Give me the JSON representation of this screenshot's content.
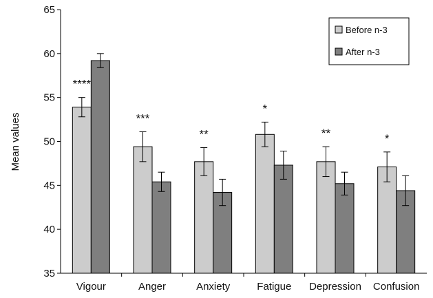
{
  "chart_data": {
    "type": "bar",
    "ylabel": "Mean values",
    "ylim": [
      35,
      65
    ],
    "yticks": [
      35,
      40,
      45,
      50,
      55,
      60,
      65
    ],
    "categories": [
      "Vigour",
      "Anger",
      "Anxiety",
      "Fatigue",
      "Depression",
      "Confusion"
    ],
    "significance": [
      "****",
      "***",
      "**",
      "*",
      "**",
      "*"
    ],
    "series": [
      {
        "name": "Before n-3",
        "color": "#cccccc",
        "values": [
          53.9,
          49.4,
          47.7,
          50.8,
          47.7,
          47.1
        ],
        "errors": [
          1.1,
          1.7,
          1.6,
          1.4,
          1.7,
          1.7
        ]
      },
      {
        "name": "After n-3",
        "color": "#7f7f7f",
        "values": [
          59.2,
          45.4,
          44.2,
          47.3,
          45.2,
          44.4
        ],
        "errors": [
          0.8,
          1.1,
          1.5,
          1.6,
          1.3,
          1.7
        ]
      }
    ],
    "legend_position": "top-right",
    "grid": false
  }
}
